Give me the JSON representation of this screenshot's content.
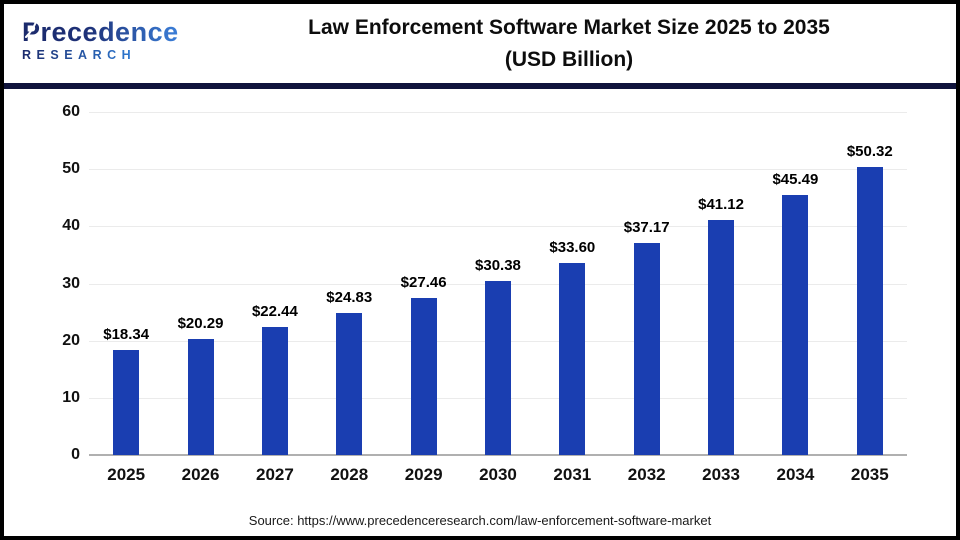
{
  "page": {
    "border_color": "#000000",
    "background_color": "#ffffff"
  },
  "header": {
    "logo": {
      "name_text": "Precedence",
      "sub_text": "RESEARCH",
      "color_dark": "#1b2a6b",
      "color_light": "#3b7fd9"
    },
    "title_line1": "Law Enforcement Software Market Size 2025 to 2035",
    "title_line2": "(USD Billion)",
    "divider_color": "#10143c"
  },
  "chart_data": {
    "type": "bar",
    "title": "Law Enforcement Software Market Size 2025 to 2035 (USD Billion)",
    "unit": "USD Billion",
    "categories": [
      "2025",
      "2026",
      "2027",
      "2028",
      "2029",
      "2030",
      "2031",
      "2032",
      "2033",
      "2034",
      "2035"
    ],
    "values": [
      18.34,
      20.29,
      22.44,
      24.83,
      27.46,
      30.38,
      33.6,
      37.17,
      41.12,
      45.49,
      50.32
    ],
    "value_labels": [
      "$18.34",
      "$20.29",
      "$22.44",
      "$24.83",
      "$27.46",
      "$30.38",
      "$33.60",
      "$37.17",
      "$41.12",
      "$45.49",
      "$50.32"
    ],
    "ylim": [
      0,
      60
    ],
    "yticks": [
      0,
      10,
      20,
      30,
      40,
      50,
      60
    ],
    "grid": true,
    "legend": false,
    "bar_color": "#1a3eb1",
    "gridline_color": "#ebebeb",
    "baseline_color": "#b0b0b0"
  },
  "footer": {
    "source_text": "Source: https://www.precedenceresearch.com/law-enforcement-software-market"
  }
}
